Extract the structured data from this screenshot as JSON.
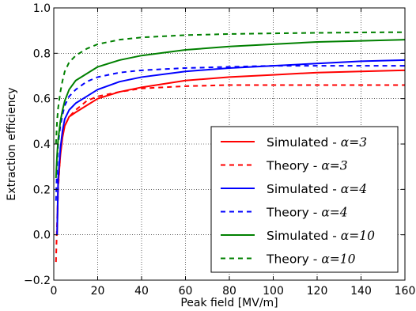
{
  "chart_data": {
    "type": "line",
    "title": "",
    "xlabel": "Peak field [MV/m]",
    "ylabel": "Extraction efficiency",
    "xlim": [
      0,
      160
    ],
    "ylim": [
      -0.2,
      1.0
    ],
    "xticks": [
      0,
      20,
      40,
      60,
      80,
      100,
      120,
      140,
      160
    ],
    "yticks": [
      -0.2,
      0.0,
      0.2,
      0.4,
      0.6,
      0.8,
      1.0
    ],
    "ytick_labels": [
      "−0.2",
      "0.0",
      "0.2",
      "0.4",
      "0.6",
      "0.8",
      "1.0"
    ],
    "grid": true,
    "legend_position": "lower-right",
    "series": [
      {
        "name": "Simulated - α=3",
        "legend_prefix": "Simulated - ",
        "legend_math": "α=3",
        "color": "#ff0000",
        "dash": "solid",
        "x": [
          1.5,
          2,
          3,
          4,
          5,
          7,
          10,
          15,
          20,
          30,
          40,
          60,
          80,
          100,
          120,
          140,
          160
        ],
        "y": [
          0.0,
          0.22,
          0.35,
          0.43,
          0.48,
          0.52,
          0.54,
          0.57,
          0.6,
          0.63,
          0.65,
          0.68,
          0.695,
          0.705,
          0.715,
          0.72,
          0.725
        ]
      },
      {
        "name": "Theory - α=3",
        "legend_prefix": "Theory - ",
        "legend_math": "α=3",
        "color": "#ff0000",
        "dash": "dashed",
        "x": [
          1,
          1.5,
          2,
          3,
          4,
          5,
          7,
          10,
          15,
          20,
          30,
          40,
          60,
          80,
          100,
          120,
          140,
          160
        ],
        "y": [
          -0.12,
          0.05,
          0.2,
          0.36,
          0.44,
          0.48,
          0.52,
          0.55,
          0.59,
          0.61,
          0.63,
          0.645,
          0.655,
          0.66,
          0.66,
          0.66,
          0.66,
          0.66
        ]
      },
      {
        "name": "Simulated - α=4",
        "legend_prefix": "Simulated - ",
        "legend_math": "α=4",
        "color": "#0000ff",
        "dash": "solid",
        "x": [
          1.5,
          2,
          3,
          4,
          5,
          7,
          10,
          15,
          20,
          30,
          40,
          60,
          80,
          100,
          120,
          140,
          160
        ],
        "y": [
          0.0,
          0.25,
          0.38,
          0.46,
          0.51,
          0.55,
          0.58,
          0.61,
          0.64,
          0.675,
          0.695,
          0.72,
          0.735,
          0.745,
          0.755,
          0.765,
          0.77
        ]
      },
      {
        "name": "Theory - α=4",
        "legend_prefix": "Theory - ",
        "legend_math": "α=4",
        "color": "#0000ff",
        "dash": "dashed",
        "x": [
          1,
          1.5,
          2,
          3,
          4,
          5,
          7,
          10,
          15,
          20,
          30,
          40,
          60,
          80,
          100,
          120,
          140,
          160
        ],
        "y": [
          0.15,
          0.3,
          0.4,
          0.48,
          0.53,
          0.57,
          0.61,
          0.64,
          0.675,
          0.695,
          0.715,
          0.725,
          0.735,
          0.74,
          0.745,
          0.745,
          0.745,
          0.745
        ]
      },
      {
        "name": "Simulated - α=10",
        "legend_prefix": "Simulated - ",
        "legend_math": "α=10",
        "color": "#008000",
        "dash": "solid",
        "x": [
          1,
          1.5,
          2,
          3,
          4,
          5,
          7,
          10,
          15,
          20,
          30,
          40,
          60,
          80,
          100,
          120,
          140,
          160
        ],
        "y": [
          0.25,
          0.35,
          0.42,
          0.5,
          0.55,
          0.59,
          0.64,
          0.68,
          0.71,
          0.74,
          0.77,
          0.79,
          0.815,
          0.83,
          0.84,
          0.85,
          0.855,
          0.86
        ]
      },
      {
        "name": "Theory - α=10",
        "legend_prefix": "Theory - ",
        "legend_math": "α=10",
        "color": "#008000",
        "dash": "dashed",
        "x": [
          1,
          1.5,
          2,
          3,
          4,
          5,
          7,
          10,
          15,
          20,
          30,
          40,
          60,
          80,
          100,
          120,
          140,
          160
        ],
        "y": [
          0.4,
          0.5,
          0.56,
          0.63,
          0.68,
          0.72,
          0.76,
          0.79,
          0.82,
          0.84,
          0.86,
          0.87,
          0.88,
          0.885,
          0.888,
          0.89,
          0.892,
          0.893
        ]
      }
    ]
  }
}
